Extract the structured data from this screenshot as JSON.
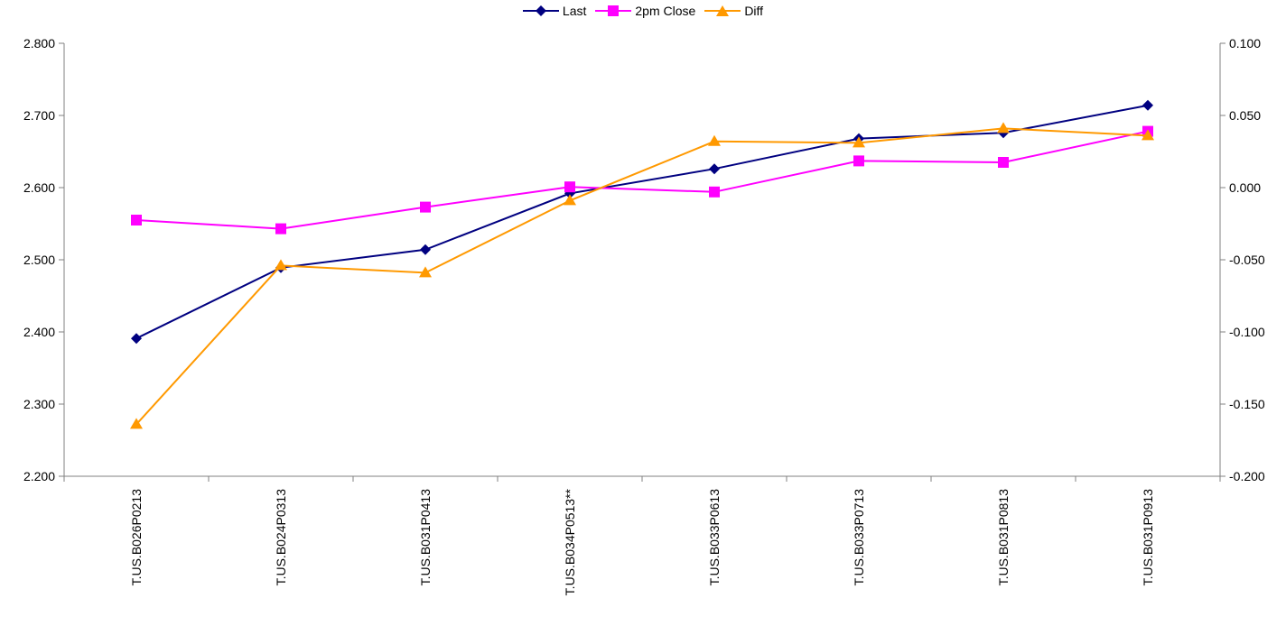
{
  "chart_data": {
    "type": "line",
    "categories": [
      "T.US.B026P0213",
      "T.US.B024P0313",
      "T.US.B031P0413",
      "T.US.B034P0513**",
      "T.US.B033P0613",
      "T.US.B033P0713",
      "T.US.B031P0813",
      "T.US.B031P0913"
    ],
    "series": [
      {
        "name": "Last",
        "axis": "left",
        "color": "#000080",
        "marker": "diamond",
        "values": [
          2.391,
          2.489,
          2.514,
          2.592,
          2.626,
          2.668,
          2.676,
          2.714
        ]
      },
      {
        "name": "2pm Close",
        "axis": "left",
        "color": "#ff00ff",
        "marker": "square",
        "values": [
          2.555,
          2.543,
          2.573,
          2.601,
          2.594,
          2.637,
          2.635,
          2.678
        ]
      },
      {
        "name": "Diff",
        "axis": "right",
        "color": "#ff9900",
        "marker": "triangle",
        "values": [
          -0.164,
          -0.054,
          -0.059,
          -0.009,
          0.032,
          0.031,
          0.041,
          0.036
        ]
      }
    ],
    "y_left": {
      "min": 2.2,
      "max": 2.8,
      "ticks": [
        "2.200",
        "2.300",
        "2.400",
        "2.500",
        "2.600",
        "2.700",
        "2.800"
      ]
    },
    "y_right": {
      "min": -0.2,
      "max": 0.1,
      "ticks": [
        "-0.200",
        "-0.150",
        "-0.100",
        "-0.050",
        "0.000",
        "0.050",
        "0.100"
      ]
    },
    "grid": false,
    "legend_position": "top-center"
  }
}
